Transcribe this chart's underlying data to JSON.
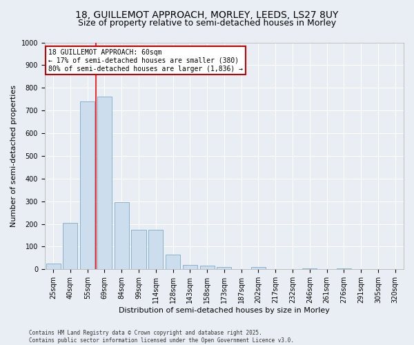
{
  "title_line1": "18, GUILLEMOT APPROACH, MORLEY, LEEDS, LS27 8UY",
  "title_line2": "Size of property relative to semi-detached houses in Morley",
  "xlabel": "Distribution of semi-detached houses by size in Morley",
  "ylabel": "Number of semi-detached properties",
  "categories": [
    "25sqm",
    "40sqm",
    "55sqm",
    "69sqm",
    "84sqm",
    "99sqm",
    "114sqm",
    "128sqm",
    "143sqm",
    "158sqm",
    "173sqm",
    "187sqm",
    "202sqm",
    "217sqm",
    "232sqm",
    "246sqm",
    "261sqm",
    "276sqm",
    "291sqm",
    "305sqm",
    "320sqm"
  ],
  "values": [
    25,
    205,
    740,
    760,
    295,
    175,
    175,
    65,
    20,
    15,
    10,
    0,
    10,
    0,
    0,
    5,
    0,
    5,
    0,
    0,
    0
  ],
  "bar_color": "#ccdded",
  "bar_edge_color": "#7aaac8",
  "red_line_index": 2.5,
  "annotation_title": "18 GUILLEMOT APPROACH: 60sqm",
  "annotation_line1": "← 17% of semi-detached houses are smaller (380)",
  "annotation_line2": "80% of semi-detached houses are larger (1,836) →",
  "ylim": [
    0,
    1000
  ],
  "yticks": [
    0,
    100,
    200,
    300,
    400,
    500,
    600,
    700,
    800,
    900,
    1000
  ],
  "footer_line1": "Contains HM Land Registry data © Crown copyright and database right 2025.",
  "footer_line2": "Contains public sector information licensed under the Open Government Licence v3.0.",
  "background_color": "#e8eef4",
  "plot_background": "#e8eef4",
  "grid_color": "#ffffff",
  "title_fontsize": 10,
  "subtitle_fontsize": 9,
  "axis_label_fontsize": 8,
  "tick_fontsize": 7,
  "annotation_box_color": "#ffffff",
  "annotation_box_edge": "#cc0000",
  "annotation_fontsize": 7
}
